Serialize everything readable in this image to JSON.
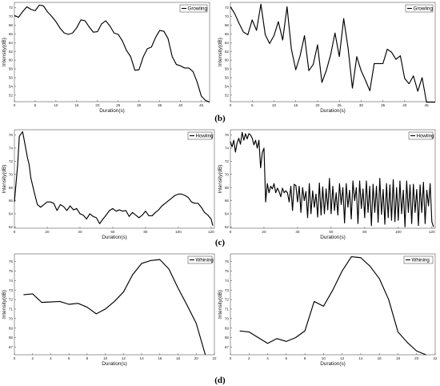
{
  "panel_labels": [
    "(b)",
    "(c)",
    "(d)"
  ],
  "chart_data": [
    {
      "type": "line",
      "xlabel": "Duration(s)",
      "ylabel": "Intensity(dB)",
      "xlim": [
        0,
        47
      ],
      "ylim": [
        50.5,
        73.2
      ],
      "xticks": [
        0,
        5,
        10,
        15,
        20,
        25,
        30,
        35,
        40,
        45
      ],
      "yticks": [
        52,
        54,
        56,
        58,
        60,
        62,
        64,
        66,
        68,
        70,
        72
      ],
      "legend": "top-right",
      "series": [
        {
          "name": "Growling",
          "x": [
            0,
            1,
            2,
            3,
            4,
            5,
            6,
            7,
            8,
            9,
            10,
            11,
            12,
            13,
            14,
            15,
            16,
            17,
            18,
            19,
            20,
            21,
            22,
            23,
            24,
            25,
            26,
            27,
            28,
            29,
            30,
            31,
            32,
            33,
            34,
            35,
            36,
            37,
            38,
            39,
            40,
            41,
            42,
            43,
            44,
            45,
            46,
            47
          ],
          "y": [
            70.2,
            69.8,
            71.1,
            72.2,
            71.6,
            71.3,
            72.6,
            72.4,
            71.0,
            70.0,
            68.8,
            67.3,
            66.2,
            65.9,
            66.2,
            67.4,
            69.2,
            69.0,
            67.6,
            66.4,
            66.5,
            68.3,
            69.0,
            67.8,
            66.2,
            65.9,
            64.4,
            62.2,
            60.8,
            57.7,
            57.8,
            60.7,
            62.6,
            63.0,
            65.2,
            66.8,
            66.6,
            64.9,
            60.8,
            59.0,
            58.7,
            58.2,
            58.2,
            57.4,
            55.0,
            51.8,
            50.8,
            50.4
          ]
        }
      ]
    },
    {
      "type": "line",
      "xlabel": "Duration(s)",
      "ylabel": "Intensity(dB)",
      "xlim": [
        0,
        47
      ],
      "ylim": [
        50.5,
        73.2
      ],
      "xticks": [
        0,
        5,
        10,
        15,
        20,
        25,
        30,
        35,
        40,
        45
      ],
      "yticks": [
        52,
        54,
        56,
        58,
        60,
        62,
        64,
        66,
        68,
        70,
        72
      ],
      "legend": "top-right",
      "series": [
        {
          "name": "Growling",
          "x": [
            0,
            1,
            2,
            3,
            4,
            5,
            6,
            7,
            8,
            9,
            10,
            11,
            12,
            13,
            14,
            15,
            16,
            17,
            18,
            19,
            20,
            21,
            22,
            23,
            24,
            25,
            26,
            27,
            28,
            29,
            30,
            31,
            32,
            33,
            34,
            35,
            36,
            37,
            38,
            39,
            40,
            41,
            42,
            43,
            44,
            45,
            46,
            47
          ],
          "y": [
            72.2,
            70.6,
            68.4,
            66.4,
            65.8,
            69.2,
            66.8,
            72.8,
            65.8,
            63.8,
            65.6,
            68.8,
            64.6,
            72.2,
            62.5,
            57.8,
            61.0,
            65.6,
            57.6,
            59.0,
            63.5,
            54.9,
            57.6,
            61.2,
            66.2,
            60.8,
            69.5,
            62.8,
            53.6,
            60.8,
            57.6,
            55.4,
            53.0,
            59.2,
            59.2,
            59.2,
            62.5,
            61.8,
            60.2,
            61.0,
            55.8,
            54.6,
            56.4,
            52.9,
            56.0,
            50.4,
            50.4,
            50.4
          ]
        }
      ]
    },
    {
      "type": "line",
      "xlabel": "Duration(s)",
      "ylabel": "Intensity(dB)",
      "xlim": [
        0,
        122
      ],
      "ylim": [
        61.8,
        76.8
      ],
      "xticks": [
        0,
        20,
        40,
        60,
        80,
        100,
        120
      ],
      "yticks": [
        62,
        64,
        66,
        68,
        70,
        72,
        74,
        76
      ],
      "legend": "top-right",
      "series": [
        {
          "name": "Howling",
          "x": [
            0,
            2,
            3,
            5,
            6,
            8,
            9,
            10,
            12,
            14,
            16,
            18,
            20,
            22,
            24,
            26,
            28,
            30,
            32,
            34,
            36,
            38,
            40,
            42,
            44,
            46,
            48,
            50,
            52,
            54,
            56,
            58,
            60,
            62,
            64,
            66,
            68,
            70,
            72,
            74,
            76,
            78,
            80,
            82,
            84,
            86,
            88,
            90,
            92,
            94,
            96,
            98,
            100,
            102,
            104,
            106,
            108,
            110,
            112,
            114,
            116,
            118,
            120,
            121
          ],
          "y": [
            65.8,
            71.5,
            75.8,
            76.5,
            75.2,
            72.5,
            71.5,
            69.5,
            67.4,
            65.4,
            65.0,
            65.4,
            65.8,
            65.8,
            65.6,
            64.5,
            65.4,
            65.1,
            64.5,
            65.2,
            64.6,
            64.8,
            64.0,
            63.8,
            63.2,
            64.0,
            63.6,
            63.4,
            62.5,
            63.2,
            63.8,
            64.5,
            64.8,
            64.4,
            64.6,
            64.4,
            64.5,
            63.6,
            64.2,
            63.8,
            63.4,
            63.8,
            64.4,
            63.7,
            63.7,
            64.2,
            64.6,
            65.2,
            65.6,
            66.0,
            66.4,
            66.8,
            67.0,
            67.0,
            66.8,
            66.5,
            65.8,
            65.6,
            65.6,
            65.0,
            64.2,
            63.8,
            63.2,
            62.2
          ]
        }
      ]
    },
    {
      "type": "line",
      "xlabel": "Duration(s)",
      "ylabel": "Intensity(dB)",
      "xlim": [
        0,
        122
      ],
      "ylim": [
        61.8,
        76.8
      ],
      "xticks": [
        0,
        20,
        40,
        60,
        80,
        100,
        120
      ],
      "yticks": [
        62,
        64,
        66,
        68,
        70,
        72,
        74,
        76
      ],
      "legend": "top-right",
      "series": [
        {
          "name": "Howling",
          "x": [
            0,
            1,
            2,
            3,
            4,
            5,
            6,
            7,
            8,
            9,
            10,
            11,
            12,
            13,
            14,
            15,
            16,
            17,
            18,
            19,
            20,
            21,
            22,
            23,
            24,
            25,
            26,
            27,
            28,
            29,
            30,
            31,
            32,
            33,
            34,
            35,
            36,
            37,
            38,
            39,
            40,
            41,
            42,
            43,
            44,
            45,
            46,
            47,
            48,
            49,
            50,
            51,
            52,
            53,
            54,
            55,
            56,
            57,
            58,
            59,
            60,
            61,
            62,
            63,
            64,
            65,
            66,
            67,
            68,
            69,
            70,
            71,
            72,
            73,
            74,
            75,
            76,
            77,
            78,
            79,
            80,
            81,
            82,
            83,
            84,
            85,
            86,
            87,
            88,
            89,
            90,
            91,
            92,
            93,
            94,
            95,
            96,
            97,
            98,
            99,
            100,
            101,
            102,
            103,
            104,
            105,
            106,
            107,
            108,
            109,
            110,
            111,
            112,
            113,
            114,
            115,
            116,
            117,
            118,
            119,
            120,
            121
          ],
          "y": [
            75.0,
            74.2,
            75.2,
            73.4,
            74.8,
            75.5,
            74.6,
            76.4,
            75.2,
            76.2,
            75.4,
            76.2,
            76.0,
            75.5,
            74.5,
            75.2,
            74.0,
            75.2,
            71.0,
            73.3,
            74.0,
            65.8,
            68.6,
            67.2,
            68.2,
            67.8,
            68.6,
            67.2,
            67.9,
            67.4,
            66.6,
            67.9,
            67.2,
            67.5,
            67.2,
            65.8,
            68.2,
            64.5,
            68.5,
            68.3,
            65.8,
            68.2,
            64.2,
            68.0,
            66.0,
            67.4,
            63.4,
            68.6,
            64.0,
            67.5,
            65.0,
            67.0,
            63.5,
            68.7,
            63.8,
            68.1,
            64.0,
            67.8,
            64.6,
            69.4,
            64.0,
            68.2,
            64.5,
            67.2,
            63.8,
            68.6,
            65.4,
            68.0,
            62.6,
            68.6,
            65.0,
            67.6,
            63.2,
            69.0,
            66.0,
            68.0,
            62.5,
            69.0,
            64.8,
            67.8,
            63.4,
            69.0,
            64.2,
            68.2,
            62.2,
            68.5,
            64.2,
            68.2,
            62.7,
            69.4,
            63.9,
            67.7,
            62.4,
            68.6,
            63.4,
            68.4,
            63.0,
            69.2,
            62.8,
            68.0,
            63.0,
            69.0,
            64.0,
            67.6,
            62.0,
            69.0,
            64.2,
            68.4,
            62.5,
            68.5,
            64.2,
            67.7,
            62.2,
            68.4,
            64.2,
            68.8,
            62.5,
            67.6,
            65.2,
            68.6,
            62.8,
            62.0
          ]
        }
      ]
    },
    {
      "type": "line",
      "xlabel": "Duration(s)",
      "ylabel": "Intensity(dB)",
      "xlim": [
        0,
        22
      ],
      "ylim": [
        66.2,
        76.8
      ],
      "xticks": [
        0,
        2,
        4,
        6,
        8,
        10,
        12,
        14,
        16,
        18,
        20,
        22
      ],
      "yticks": [
        67,
        68,
        69,
        70,
        71,
        72,
        73,
        74,
        75,
        76
      ],
      "legend": "top-right",
      "series": [
        {
          "name": "Whining",
          "x": [
            1,
            2,
            3,
            5,
            6,
            7,
            8,
            9,
            10,
            11,
            12,
            13,
            14,
            15,
            16,
            17,
            18,
            19,
            20,
            21
          ],
          "y": [
            72.5,
            72.6,
            71.7,
            71.8,
            71.5,
            71.6,
            71.2,
            70.5,
            71.0,
            71.8,
            72.8,
            74.6,
            75.8,
            76.1,
            76.2,
            75.2,
            73.2,
            71.4,
            69.5,
            66.2
          ]
        }
      ]
    },
    {
      "type": "line",
      "xlabel": "Duration(s)",
      "ylabel": "Intensity(dB)",
      "xlim": [
        0,
        22
      ],
      "ylim": [
        66.2,
        76.8
      ],
      "xticks": [
        0,
        2,
        4,
        6,
        8,
        10,
        12,
        14,
        16,
        18,
        20,
        22
      ],
      "yticks": [
        67,
        68,
        69,
        70,
        71,
        72,
        73,
        74,
        75,
        76
      ],
      "legend": "top-right",
      "series": [
        {
          "name": "Whining",
          "x": [
            1,
            2,
            3,
            4,
            5,
            6,
            7,
            8,
            9,
            10,
            11,
            12,
            13,
            14,
            15,
            16,
            17,
            18,
            19,
            20,
            21
          ],
          "y": [
            68.7,
            68.6,
            68.0,
            67.4,
            67.9,
            67.6,
            68.0,
            68.7,
            71.8,
            71.3,
            73.0,
            75.0,
            76.5,
            76.4,
            75.5,
            74.2,
            72.0,
            68.6,
            67.5,
            66.6,
            66.2
          ]
        }
      ]
    }
  ]
}
